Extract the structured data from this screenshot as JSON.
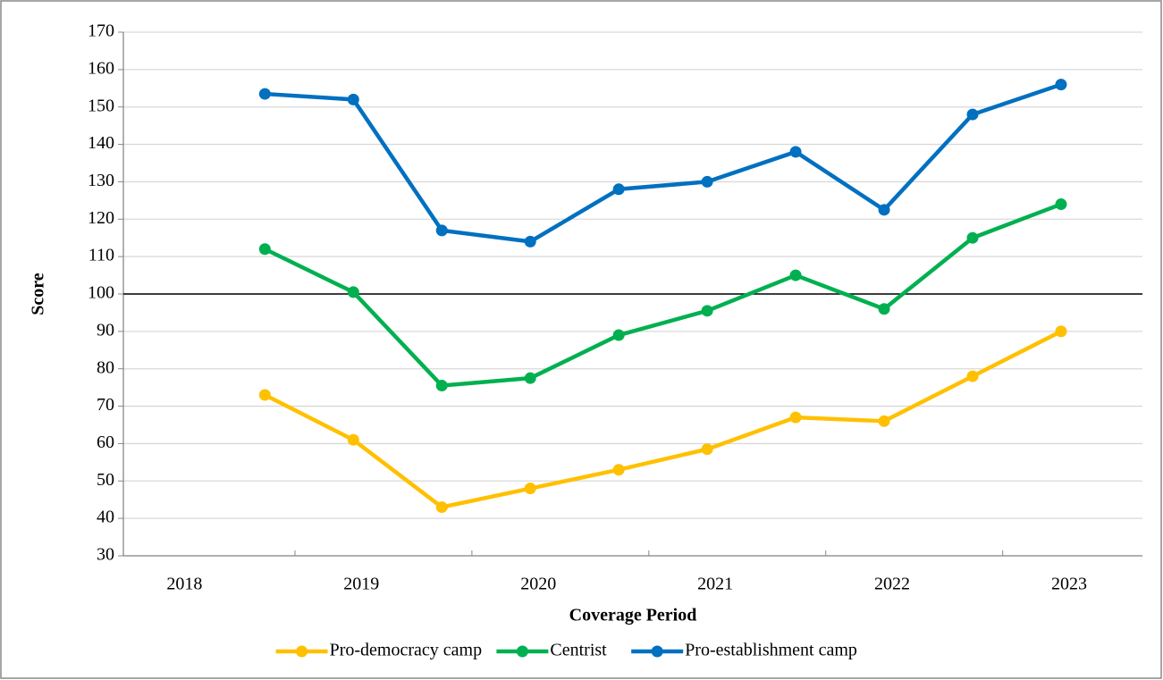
{
  "chart_data": {
    "type": "line",
    "y_label": "Score",
    "x_label": "Coverage Period",
    "x": [
      2018.5,
      2019,
      2019.5,
      2020,
      2020.5,
      2021,
      2021.5,
      2022,
      2022.5,
      2023
    ],
    "series": [
      {
        "name": "Pro-democracy camp",
        "color": "#FFC000",
        "values": [
          73,
          61,
          43,
          48,
          53,
          58.5,
          67,
          66,
          78,
          90
        ]
      },
      {
        "name": "Centrist",
        "color": "#00B050",
        "values": [
          112,
          100.5,
          75.5,
          77.5,
          89,
          95.5,
          105,
          96,
          115,
          124
        ]
      },
      {
        "name": "Pro-establishment camp",
        "color": "#0070C0",
        "values": [
          153.5,
          152,
          117,
          114,
          128,
          130,
          138,
          122.5,
          148,
          156
        ]
      }
    ],
    "xlim": [
      2017.7,
      2023.46
    ],
    "xticks": [
      2018,
      2019,
      2020,
      2021,
      2022,
      2023
    ],
    "ylim": [
      30,
      170
    ],
    "yticks": [
      30,
      40,
      50,
      60,
      70,
      80,
      90,
      100,
      110,
      120,
      130,
      140,
      150,
      160,
      170
    ],
    "reference_line": 100,
    "grid": true,
    "legend": "bottom"
  }
}
